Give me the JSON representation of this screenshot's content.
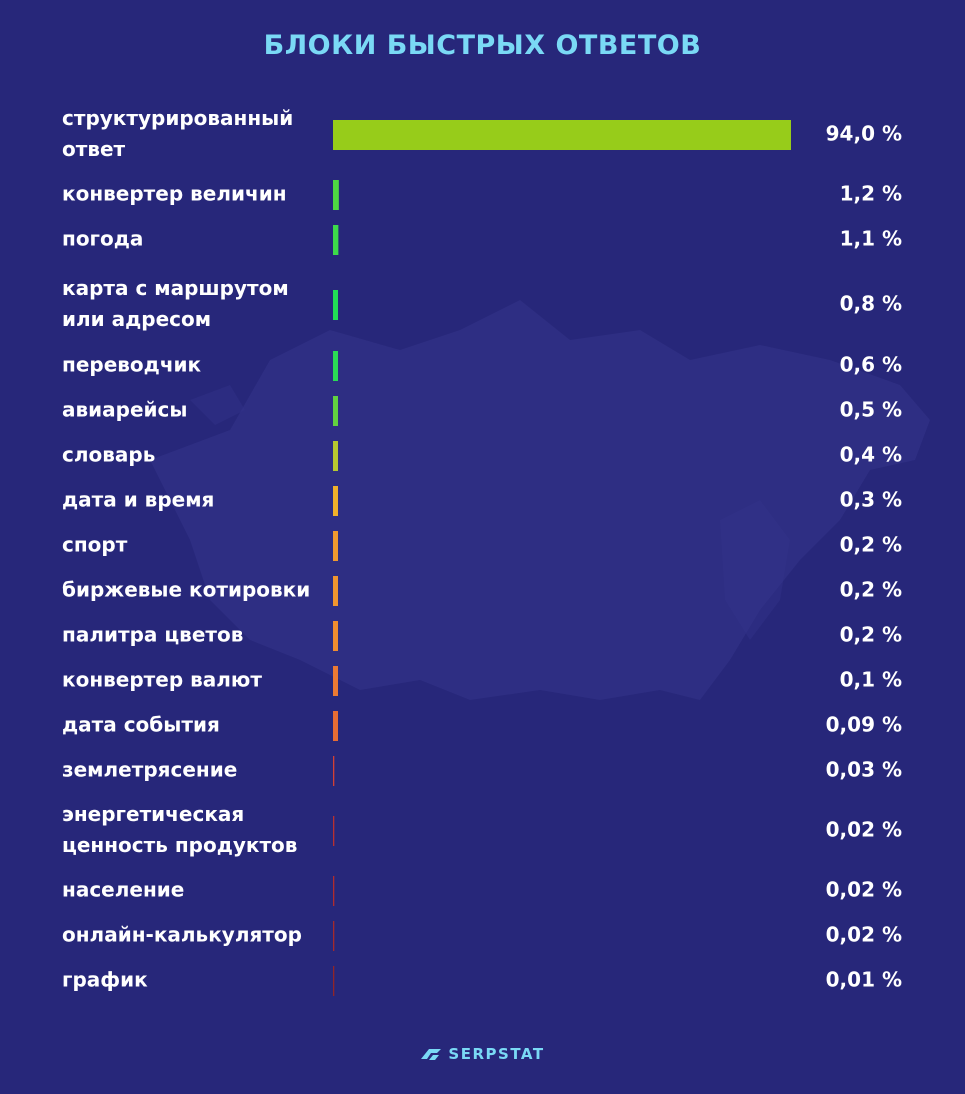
{
  "chart_data": {
    "type": "bar",
    "orientation": "horizontal",
    "title": "БЛОКИ БЫСТРЫХ ОТВЕТОВ",
    "categories": [
      [
        "структурированный",
        "ответ"
      ],
      [
        "конвертер величин"
      ],
      [
        "погода"
      ],
      [
        "карта с маршрутом",
        "или адресом"
      ],
      [
        "переводчик"
      ],
      [
        "авиарейсы"
      ],
      [
        "словарь"
      ],
      [
        "дата и время"
      ],
      [
        "спорт"
      ],
      [
        "биржевые котировки"
      ],
      [
        "палитра цветов"
      ],
      [
        "конвертер валют"
      ],
      [
        "дата события"
      ],
      [
        "землетрясение"
      ],
      [
        "энергетическая",
        "ценность продуктов"
      ],
      [
        "население"
      ],
      [
        "онлайн-калькулятор"
      ],
      [
        "график"
      ]
    ],
    "values": [
      94.0,
      1.2,
      1.1,
      0.8,
      0.6,
      0.5,
      0.4,
      0.3,
      0.2,
      0.2,
      0.2,
      0.1,
      0.09,
      0.03,
      0.02,
      0.02,
      0.02,
      0.01
    ],
    "value_labels": [
      "94,0 %",
      "1,2 %",
      "1,1 %",
      "0,8 %",
      "0,6 %",
      "0,5 %",
      "0,4 %",
      "0,3 %",
      "0,2 %",
      "0,2 %",
      "0,2 %",
      "0,1 %",
      "0,09 %",
      "0,03 %",
      "0,02 %",
      "0,02 %",
      "0,02 %",
      "0,01 %"
    ],
    "colors": [
      "#97cc1a",
      "#4fd842",
      "#3ddb4a",
      "#22dd55",
      "#2bdc55",
      "#62d240",
      "#b7c830",
      "#f0b12a",
      "#f09a2f",
      "#f0962f",
      "#f08d30",
      "#ec7a33",
      "#e66d34",
      "#d24034",
      "#b83030",
      "#b02c2e",
      "#a42a2c",
      "#902528"
    ],
    "grid": false,
    "legend": "none"
  },
  "brand": {
    "logo_text": "SERPSTAT",
    "logo_icon": "serpstat-arrow-icon",
    "title_color": "#7ad9f5",
    "background": "#27277a"
  }
}
